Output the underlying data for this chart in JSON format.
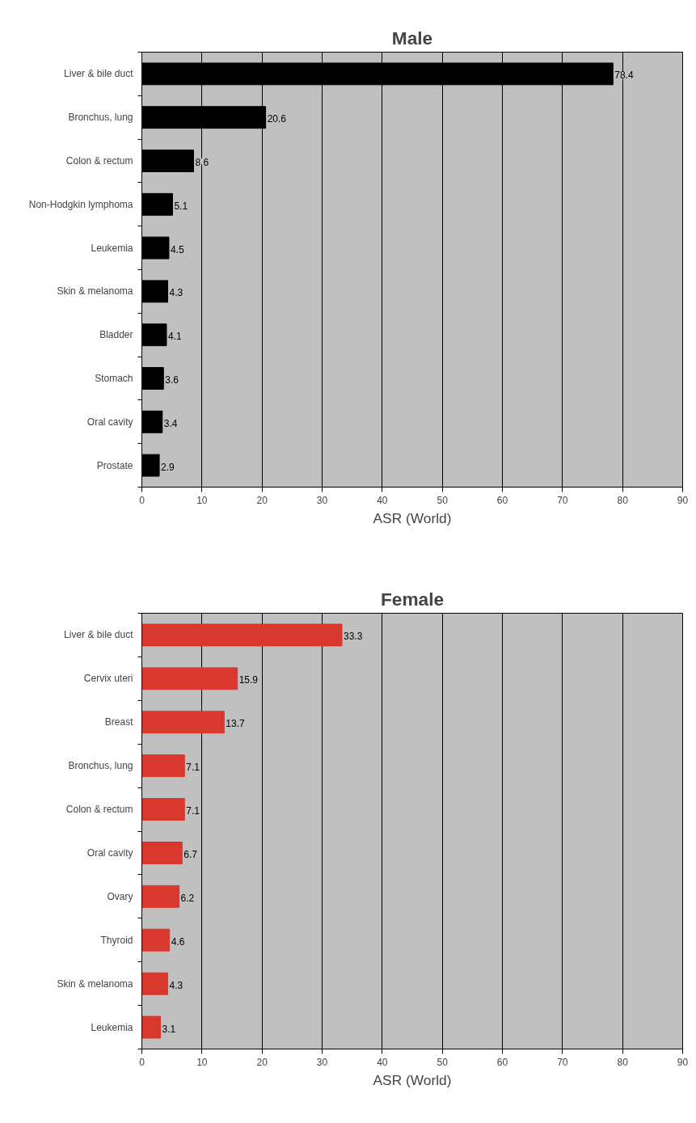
{
  "chart_data": [
    {
      "type": "bar",
      "orientation": "horizontal",
      "title": "Male",
      "xlabel": "ASR (World)",
      "categories": [
        "Liver & bile duct",
        "Bronchus, lung",
        "Colon & rectum",
        "Non-Hodgkin lymphoma",
        "Leukemia",
        "Skin & melanoma",
        "Bladder",
        "Stomach",
        "Oral cavity",
        "Prostate"
      ],
      "values": [
        78.4,
        20.6,
        8.6,
        5.1,
        4.5,
        4.3,
        4.1,
        3.6,
        3.4,
        2.9
      ],
      "color": "#000000",
      "xlim": [
        0,
        90
      ],
      "xticks": [
        0,
        10,
        20,
        30,
        40,
        50,
        60,
        70,
        80,
        90
      ],
      "grid": "x",
      "data_labels": true
    },
    {
      "type": "bar",
      "orientation": "horizontal",
      "title": "Female",
      "xlabel": "ASR (World)",
      "categories": [
        "Liver & bile duct",
        "Cervix uteri",
        "Breast",
        "Bronchus, lung",
        "Colon & rectum",
        "Oral cavity",
        "Ovary",
        "Thyroid",
        "Skin & melanoma",
        "Leukemia"
      ],
      "values": [
        33.3,
        15.9,
        13.7,
        7.1,
        7.1,
        6.7,
        6.2,
        4.6,
        4.3,
        3.1
      ],
      "color": "#d9382e",
      "xlim": [
        0,
        90
      ],
      "xticks": [
        0,
        10,
        20,
        30,
        40,
        50,
        60,
        70,
        80,
        90
      ],
      "grid": "x",
      "data_labels": true
    }
  ]
}
